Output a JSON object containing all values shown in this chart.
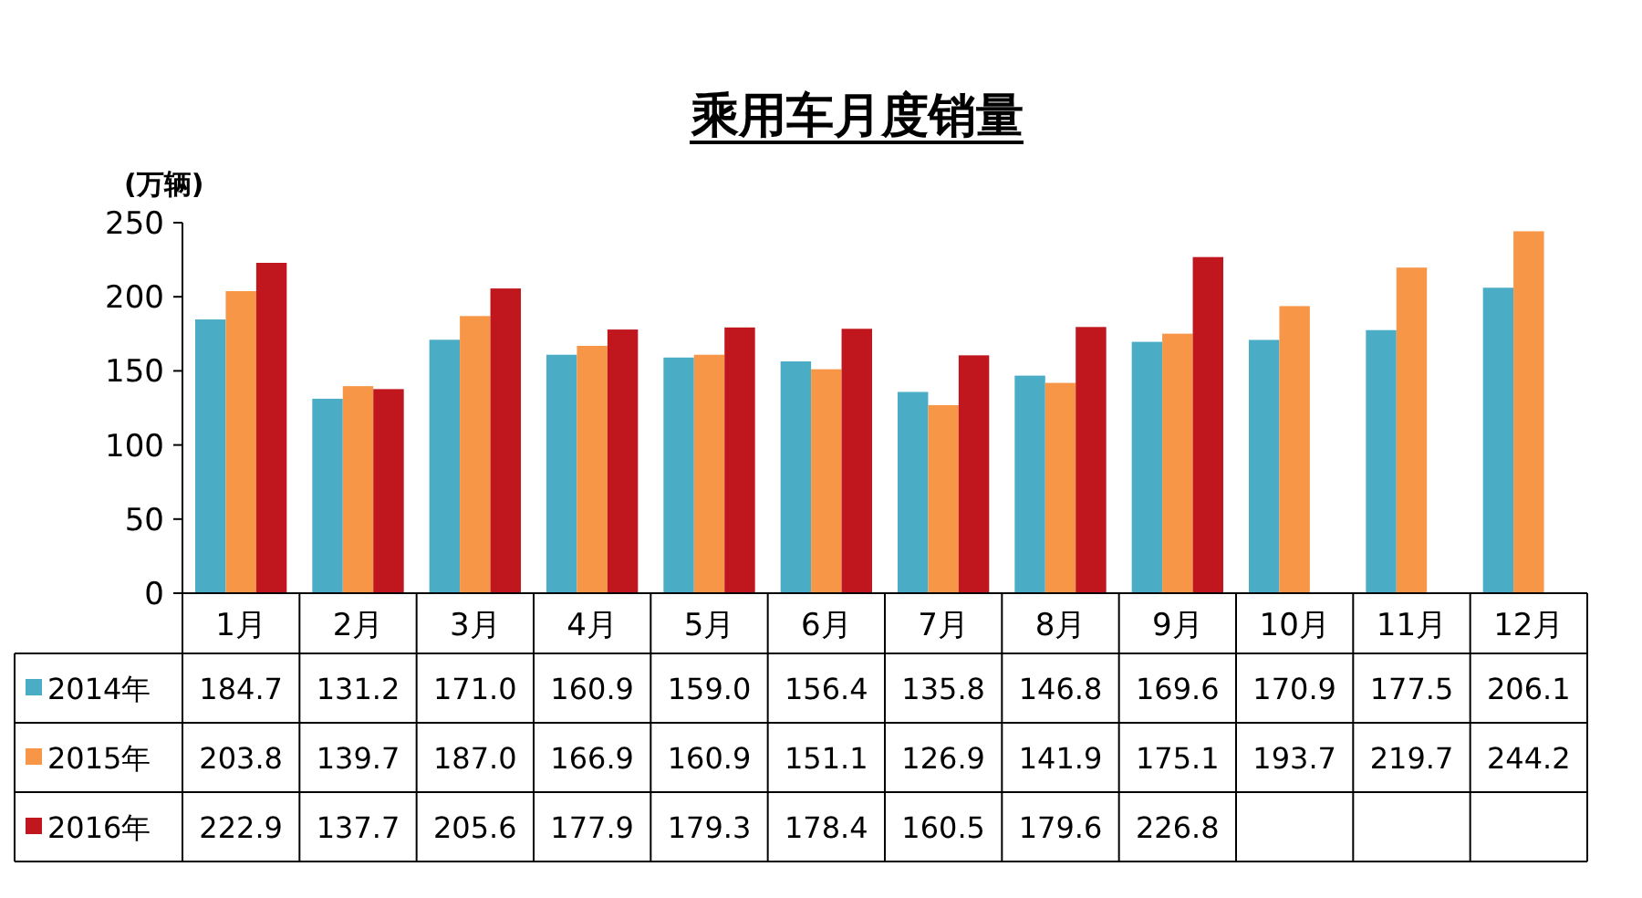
{
  "chart_data": {
    "type": "bar",
    "title": "乘用车月度销量",
    "ylabel": "(万辆)",
    "categories": [
      "1月",
      "2月",
      "3月",
      "4月",
      "5月",
      "6月",
      "7月",
      "8月",
      "9月",
      "10月",
      "11月",
      "12月"
    ],
    "series": [
      {
        "name": "2014年",
        "color": "#4bacc6",
        "values": [
          184.7,
          131.2,
          171.0,
          160.9,
          159.0,
          156.4,
          135.8,
          146.8,
          169.6,
          170.9,
          177.5,
          206.1
        ],
        "value_labels": [
          "184.7",
          "131.2",
          "171.0",
          "160.9",
          "159.0",
          "156.4",
          "135.8",
          "146.8",
          "169.6",
          "170.9",
          "177.5",
          "206.1"
        ]
      },
      {
        "name": "2015年",
        "color": "#f79646",
        "values": [
          203.8,
          139.7,
          187.0,
          166.9,
          160.9,
          151.1,
          126.9,
          141.9,
          175.1,
          193.7,
          219.7,
          244.2
        ],
        "value_labels": [
          "203.8",
          "139.7",
          "187.0",
          "166.9",
          "160.9",
          "151.1",
          "126.9",
          "141.9",
          "175.1",
          "193.7",
          "219.7",
          "244.2"
        ]
      },
      {
        "name": "2016年",
        "color": "#c0161e",
        "values": [
          222.9,
          137.7,
          205.6,
          177.9,
          179.3,
          178.4,
          160.5,
          179.6,
          226.8,
          null,
          null,
          null
        ],
        "value_labels": [
          "222.9",
          "137.7",
          "205.6",
          "177.9",
          "179.3",
          "178.4",
          "160.5",
          "179.6",
          "226.8",
          null,
          null,
          null
        ]
      }
    ],
    "ylim": [
      0,
      250
    ],
    "yticks": [
      0,
      50,
      100,
      150,
      200,
      250
    ],
    "legend": "bottom"
  }
}
